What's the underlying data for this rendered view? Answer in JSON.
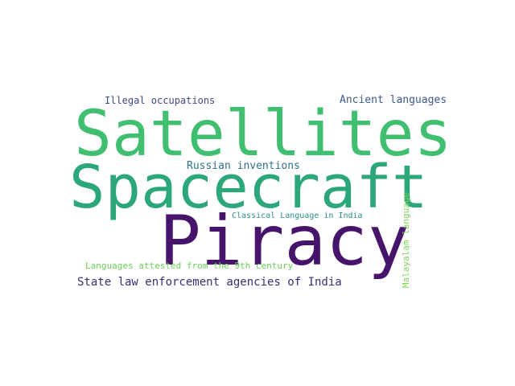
{
  "word_cloud": {
    "words": [
      {
        "text": "Satellites",
        "color": "#3fbf6f"
      },
      {
        "text": "Spacecraft",
        "color": "#2ba77a"
      },
      {
        "text": "Piracy",
        "color": "#46156b"
      },
      {
        "text": "Illegal occupations",
        "color": "#3e4a89"
      },
      {
        "text": "Ancient languages",
        "color": "#3b5a8d"
      },
      {
        "text": "Russian inventions",
        "color": "#30708e"
      },
      {
        "text": "Classical Language in India",
        "color": "#2b8a8c"
      },
      {
        "text": "Languages attested from the 9th century",
        "color": "#6ccd5a"
      },
      {
        "text": "State law enforcement agencies of India",
        "color": "#3a2d78"
      },
      {
        "text": "Malayalam language",
        "color": "#7fd35a"
      }
    ]
  }
}
